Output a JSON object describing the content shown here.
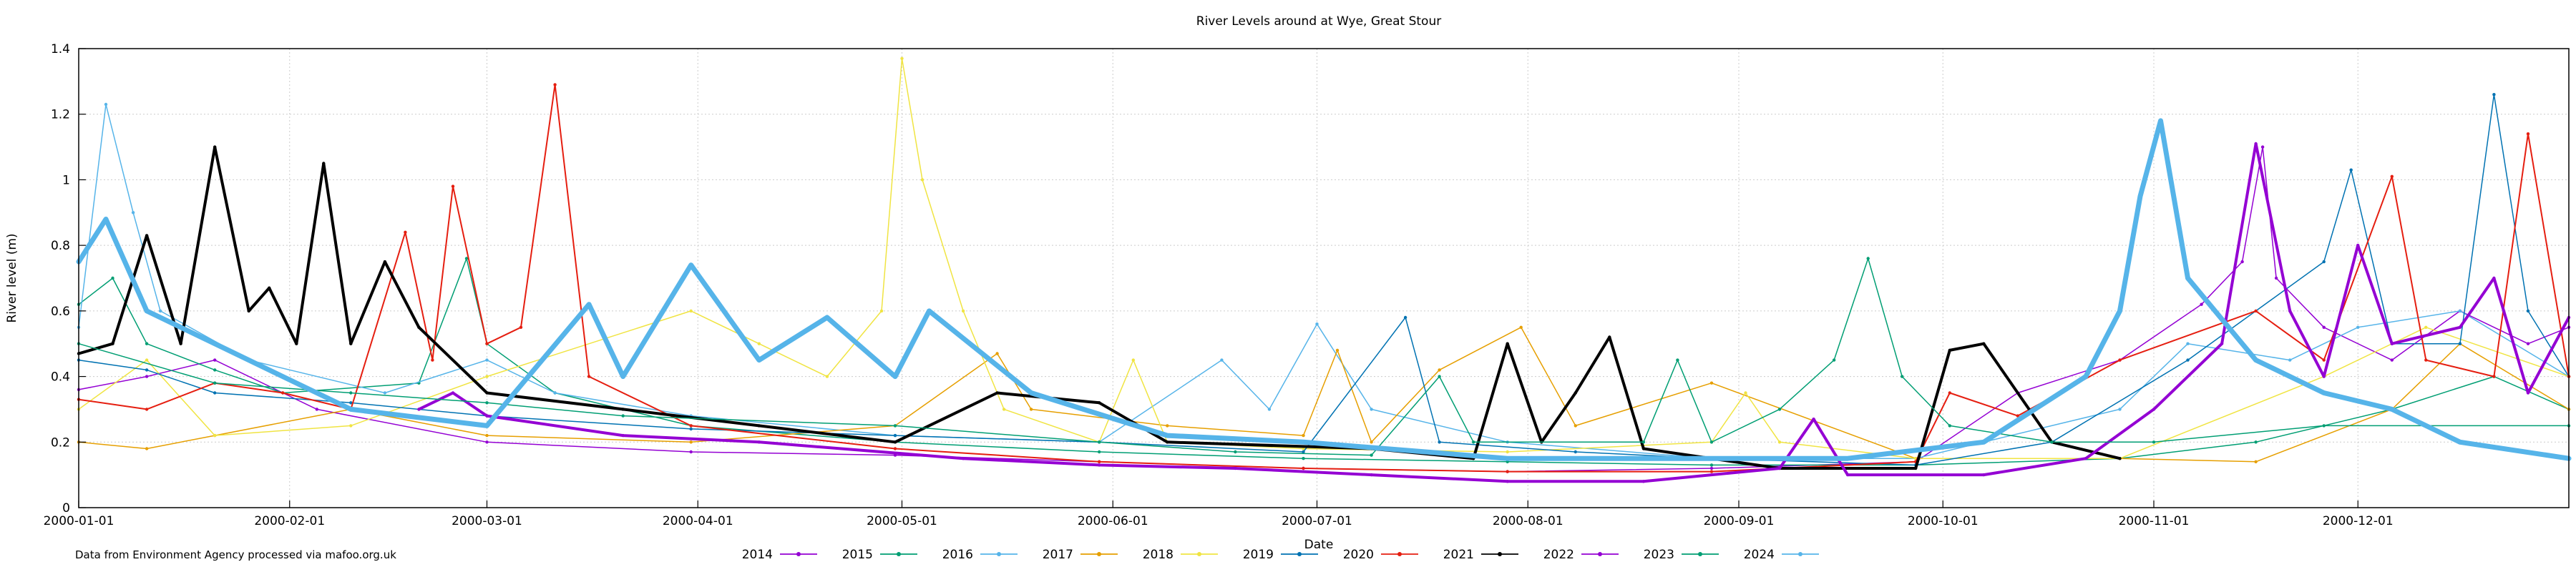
{
  "chart_data": {
    "type": "line",
    "title": "River Levels around at Wye, Great Stour",
    "xlabel": "Date",
    "ylabel": "River level (m)",
    "ylim": [
      0,
      1.4
    ],
    "yticks": [
      "0",
      "0.2",
      "0.4",
      "0.6",
      "0.8",
      "1",
      "1.2",
      "1.4"
    ],
    "xlim_days": [
      0,
      366
    ],
    "xticks": [
      {
        "label": "2000-01-01",
        "day": 0
      },
      {
        "label": "2000-02-01",
        "day": 31
      },
      {
        "label": "2000-03-01",
        "day": 60
      },
      {
        "label": "2000-04-01",
        "day": 91
      },
      {
        "label": "2000-05-01",
        "day": 121
      },
      {
        "label": "2000-06-01",
        "day": 152
      },
      {
        "label": "2000-07-01",
        "day": 182
      },
      {
        "label": "2000-08-01",
        "day": 213
      },
      {
        "label": "2000-09-01",
        "day": 244
      },
      {
        "label": "2000-10-01",
        "day": 274
      },
      {
        "label": "2000-11-01",
        "day": 305
      },
      {
        "label": "2000-12-01",
        "day": 335
      }
    ],
    "grid": true,
    "legend_position": "bottom",
    "series": [
      {
        "name": "2014",
        "color": "#9400d3",
        "marker": "plus",
        "width": 1.5,
        "points": [
          [
            0,
            0.36
          ],
          [
            10,
            0.4
          ],
          [
            20,
            0.45
          ],
          [
            35,
            0.3
          ],
          [
            60,
            0.2
          ],
          [
            90,
            0.17
          ],
          [
            120,
            0.16
          ],
          [
            150,
            0.14
          ],
          [
            180,
            0.12
          ],
          [
            210,
            0.11
          ],
          [
            240,
            0.12
          ],
          [
            270,
            0.14
          ],
          [
            285,
            0.35
          ],
          [
            300,
            0.45
          ],
          [
            312,
            0.62
          ],
          [
            318,
            0.75
          ],
          [
            321,
            1.1
          ],
          [
            323,
            0.7
          ],
          [
            330,
            0.55
          ],
          [
            340,
            0.45
          ],
          [
            350,
            0.6
          ],
          [
            360,
            0.5
          ],
          [
            366,
            0.55
          ]
        ]
      },
      {
        "name": "2015",
        "color": "#009e73",
        "marker": "circle",
        "width": 1.5,
        "points": [
          [
            0,
            0.62
          ],
          [
            5,
            0.7
          ],
          [
            10,
            0.5
          ],
          [
            20,
            0.42
          ],
          [
            30,
            0.35
          ],
          [
            50,
            0.38
          ],
          [
            57,
            0.76
          ],
          [
            60,
            0.5
          ],
          [
            70,
            0.35
          ],
          [
            90,
            0.25
          ],
          [
            120,
            0.2
          ],
          [
            150,
            0.17
          ],
          [
            180,
            0.15
          ],
          [
            210,
            0.14
          ],
          [
            240,
            0.13
          ],
          [
            270,
            0.13
          ],
          [
            300,
            0.15
          ],
          [
            320,
            0.2
          ],
          [
            340,
            0.3
          ],
          [
            355,
            0.4
          ],
          [
            366,
            0.3
          ]
        ]
      },
      {
        "name": "2016",
        "color": "#56b4e9",
        "marker": "triangle",
        "width": 1.5,
        "points": [
          [
            0,
            0.55
          ],
          [
            4,
            1.23
          ],
          [
            8,
            0.9
          ],
          [
            12,
            0.6
          ],
          [
            25,
            0.45
          ],
          [
            45,
            0.35
          ],
          [
            60,
            0.45
          ],
          [
            70,
            0.35
          ],
          [
            90,
            0.28
          ],
          [
            120,
            0.22
          ],
          [
            150,
            0.2
          ],
          [
            168,
            0.45
          ],
          [
            175,
            0.3
          ],
          [
            182,
            0.56
          ],
          [
            190,
            0.3
          ],
          [
            210,
            0.2
          ],
          [
            240,
            0.15
          ],
          [
            270,
            0.15
          ],
          [
            300,
            0.3
          ],
          [
            310,
            0.5
          ],
          [
            325,
            0.45
          ],
          [
            335,
            0.55
          ],
          [
            350,
            0.6
          ],
          [
            366,
            0.4
          ]
        ]
      },
      {
        "name": "2017",
        "color": "#e69f00",
        "marker": "square",
        "width": 1.5,
        "points": [
          [
            0,
            0.2
          ],
          [
            10,
            0.18
          ],
          [
            20,
            0.22
          ],
          [
            40,
            0.3
          ],
          [
            60,
            0.22
          ],
          [
            90,
            0.2
          ],
          [
            120,
            0.25
          ],
          [
            135,
            0.47
          ],
          [
            140,
            0.3
          ],
          [
            160,
            0.25
          ],
          [
            180,
            0.22
          ],
          [
            185,
            0.48
          ],
          [
            190,
            0.2
          ],
          [
            200,
            0.42
          ],
          [
            212,
            0.55
          ],
          [
            220,
            0.25
          ],
          [
            240,
            0.38
          ],
          [
            270,
            0.15
          ],
          [
            300,
            0.15
          ],
          [
            320,
            0.14
          ],
          [
            340,
            0.3
          ],
          [
            350,
            0.5
          ],
          [
            366,
            0.3
          ]
        ]
      },
      {
        "name": "2018",
        "color": "#f0e442",
        "marker": "circle",
        "width": 1.5,
        "points": [
          [
            0,
            0.3
          ],
          [
            10,
            0.45
          ],
          [
            20,
            0.22
          ],
          [
            40,
            0.25
          ],
          [
            60,
            0.4
          ],
          [
            90,
            0.6
          ],
          [
            100,
            0.5
          ],
          [
            110,
            0.4
          ],
          [
            118,
            0.6
          ],
          [
            121,
            1.37
          ],
          [
            124,
            1.0
          ],
          [
            130,
            0.6
          ],
          [
            136,
            0.3
          ],
          [
            150,
            0.2
          ],
          [
            155,
            0.45
          ],
          [
            160,
            0.2
          ],
          [
            180,
            0.18
          ],
          [
            210,
            0.17
          ],
          [
            240,
            0.2
          ],
          [
            245,
            0.35
          ],
          [
            250,
            0.2
          ],
          [
            270,
            0.15
          ],
          [
            300,
            0.15
          ],
          [
            330,
            0.4
          ],
          [
            345,
            0.55
          ],
          [
            366,
            0.4
          ]
        ]
      },
      {
        "name": "2019",
        "color": "#0072b2",
        "marker": "circle",
        "width": 1.5,
        "points": [
          [
            0,
            0.45
          ],
          [
            10,
            0.42
          ],
          [
            20,
            0.35
          ],
          [
            40,
            0.32
          ],
          [
            60,
            0.28
          ],
          [
            90,
            0.24
          ],
          [
            120,
            0.22
          ],
          [
            150,
            0.2
          ],
          [
            180,
            0.17
          ],
          [
            195,
            0.58
          ],
          [
            200,
            0.2
          ],
          [
            220,
            0.17
          ],
          [
            240,
            0.15
          ],
          [
            270,
            0.13
          ],
          [
            290,
            0.2
          ],
          [
            310,
            0.45
          ],
          [
            330,
            0.75
          ],
          [
            334,
            1.03
          ],
          [
            340,
            0.5
          ],
          [
            350,
            0.5
          ],
          [
            355,
            1.26
          ],
          [
            360,
            0.6
          ],
          [
            366,
            0.4
          ]
        ]
      },
      {
        "name": "2020",
        "color": "#e51e10",
        "marker": "circle",
        "width": 2,
        "points": [
          [
            0,
            0.33
          ],
          [
            10,
            0.3
          ],
          [
            20,
            0.38
          ],
          [
            30,
            0.35
          ],
          [
            40,
            0.3
          ],
          [
            48,
            0.84
          ],
          [
            52,
            0.45
          ],
          [
            55,
            0.98
          ],
          [
            60,
            0.5
          ],
          [
            65,
            0.55
          ],
          [
            70,
            1.29
          ],
          [
            75,
            0.4
          ],
          [
            90,
            0.25
          ],
          [
            120,
            0.18
          ],
          [
            150,
            0.14
          ],
          [
            180,
            0.12
          ],
          [
            210,
            0.11
          ],
          [
            240,
            0.11
          ],
          [
            270,
            0.14
          ],
          [
            275,
            0.35
          ],
          [
            285,
            0.28
          ],
          [
            300,
            0.45
          ],
          [
            320,
            0.6
          ],
          [
            330,
            0.45
          ],
          [
            340,
            1.01
          ],
          [
            345,
            0.45
          ],
          [
            355,
            0.4
          ],
          [
            360,
            1.14
          ],
          [
            366,
            0.4
          ]
        ]
      },
      {
        "name": "2021",
        "color": "#000000",
        "marker": "triangle",
        "width": 4,
        "points": [
          [
            0,
            0.47
          ],
          [
            5,
            0.5
          ],
          [
            10,
            0.83
          ],
          [
            15,
            0.5
          ],
          [
            20,
            1.1
          ],
          [
            25,
            0.6
          ],
          [
            28,
            0.67
          ],
          [
            32,
            0.5
          ],
          [
            36,
            1.05
          ],
          [
            40,
            0.5
          ],
          [
            45,
            0.75
          ],
          [
            50,
            0.55
          ],
          [
            60,
            0.35
          ],
          [
            80,
            0.3
          ],
          [
            100,
            0.25
          ],
          [
            120,
            0.2
          ],
          [
            135,
            0.35
          ],
          [
            150,
            0.32
          ],
          [
            160,
            0.2
          ],
          [
            190,
            0.18
          ],
          [
            205,
            0.15
          ],
          [
            210,
            0.5
          ],
          [
            215,
            0.2
          ],
          [
            220,
            0.35
          ],
          [
            225,
            0.52
          ],
          [
            230,
            0.18
          ],
          [
            250,
            0.12
          ],
          [
            270,
            0.12
          ],
          [
            275,
            0.48
          ],
          [
            280,
            0.5
          ],
          [
            290,
            0.2
          ],
          [
            300,
            0.15
          ]
        ]
      },
      {
        "name": "2022",
        "color": "#9400d3",
        "marker": "triangle",
        "width": 4,
        "points": [
          [
            50,
            0.3
          ],
          [
            55,
            0.35
          ],
          [
            60,
            0.28
          ],
          [
            80,
            0.22
          ],
          [
            100,
            0.2
          ],
          [
            130,
            0.15
          ],
          [
            150,
            0.13
          ],
          [
            170,
            0.12
          ],
          [
            190,
            0.1
          ],
          [
            210,
            0.08
          ],
          [
            230,
            0.08
          ],
          [
            250,
            0.12
          ],
          [
            255,
            0.27
          ],
          [
            260,
            0.1
          ],
          [
            280,
            0.1
          ],
          [
            295,
            0.15
          ],
          [
            305,
            0.3
          ],
          [
            315,
            0.5
          ],
          [
            320,
            1.11
          ],
          [
            325,
            0.6
          ],
          [
            330,
            0.4
          ],
          [
            335,
            0.8
          ],
          [
            340,
            0.5
          ],
          [
            350,
            0.55
          ],
          [
            355,
            0.7
          ],
          [
            360,
            0.35
          ],
          [
            366,
            0.58
          ]
        ]
      },
      {
        "name": "2023",
        "color": "#009e73",
        "marker": "x",
        "width": 1.5,
        "points": [
          [
            0,
            0.5
          ],
          [
            20,
            0.38
          ],
          [
            40,
            0.35
          ],
          [
            60,
            0.32
          ],
          [
            80,
            0.28
          ],
          [
            120,
            0.25
          ],
          [
            150,
            0.2
          ],
          [
            170,
            0.17
          ],
          [
            190,
            0.16
          ],
          [
            200,
            0.4
          ],
          [
            205,
            0.2
          ],
          [
            230,
            0.2
          ],
          [
            235,
            0.45
          ],
          [
            240,
            0.2
          ],
          [
            250,
            0.3
          ],
          [
            258,
            0.45
          ],
          [
            263,
            0.76
          ],
          [
            268,
            0.4
          ],
          [
            275,
            0.25
          ],
          [
            290,
            0.2
          ],
          [
            305,
            0.2
          ],
          [
            330,
            0.25
          ],
          [
            366,
            0.25
          ]
        ]
      },
      {
        "name": "2024",
        "color": "#56b4e9",
        "marker": "triangle-down",
        "width": 7,
        "points": [
          [
            0,
            0.75
          ],
          [
            4,
            0.88
          ],
          [
            10,
            0.6
          ],
          [
            20,
            0.5
          ],
          [
            30,
            0.4
          ],
          [
            40,
            0.3
          ],
          [
            60,
            0.25
          ],
          [
            75,
            0.62
          ],
          [
            80,
            0.4
          ],
          [
            90,
            0.74
          ],
          [
            100,
            0.45
          ],
          [
            110,
            0.58
          ],
          [
            120,
            0.4
          ],
          [
            125,
            0.6
          ],
          [
            140,
            0.35
          ],
          [
            160,
            0.22
          ],
          [
            180,
            0.2
          ],
          [
            210,
            0.15
          ],
          [
            240,
            0.15
          ],
          [
            260,
            0.15
          ],
          [
            280,
            0.2
          ],
          [
            295,
            0.4
          ],
          [
            300,
            0.6
          ],
          [
            303,
            0.95
          ],
          [
            306,
            1.18
          ],
          [
            310,
            0.7
          ],
          [
            320,
            0.45
          ],
          [
            330,
            0.35
          ],
          [
            340,
            0.3
          ],
          [
            350,
            0.2
          ],
          [
            366,
            0.15
          ]
        ]
      }
    ]
  },
  "footnote": "Data from Environment Agency processed via mafoo.org.uk"
}
